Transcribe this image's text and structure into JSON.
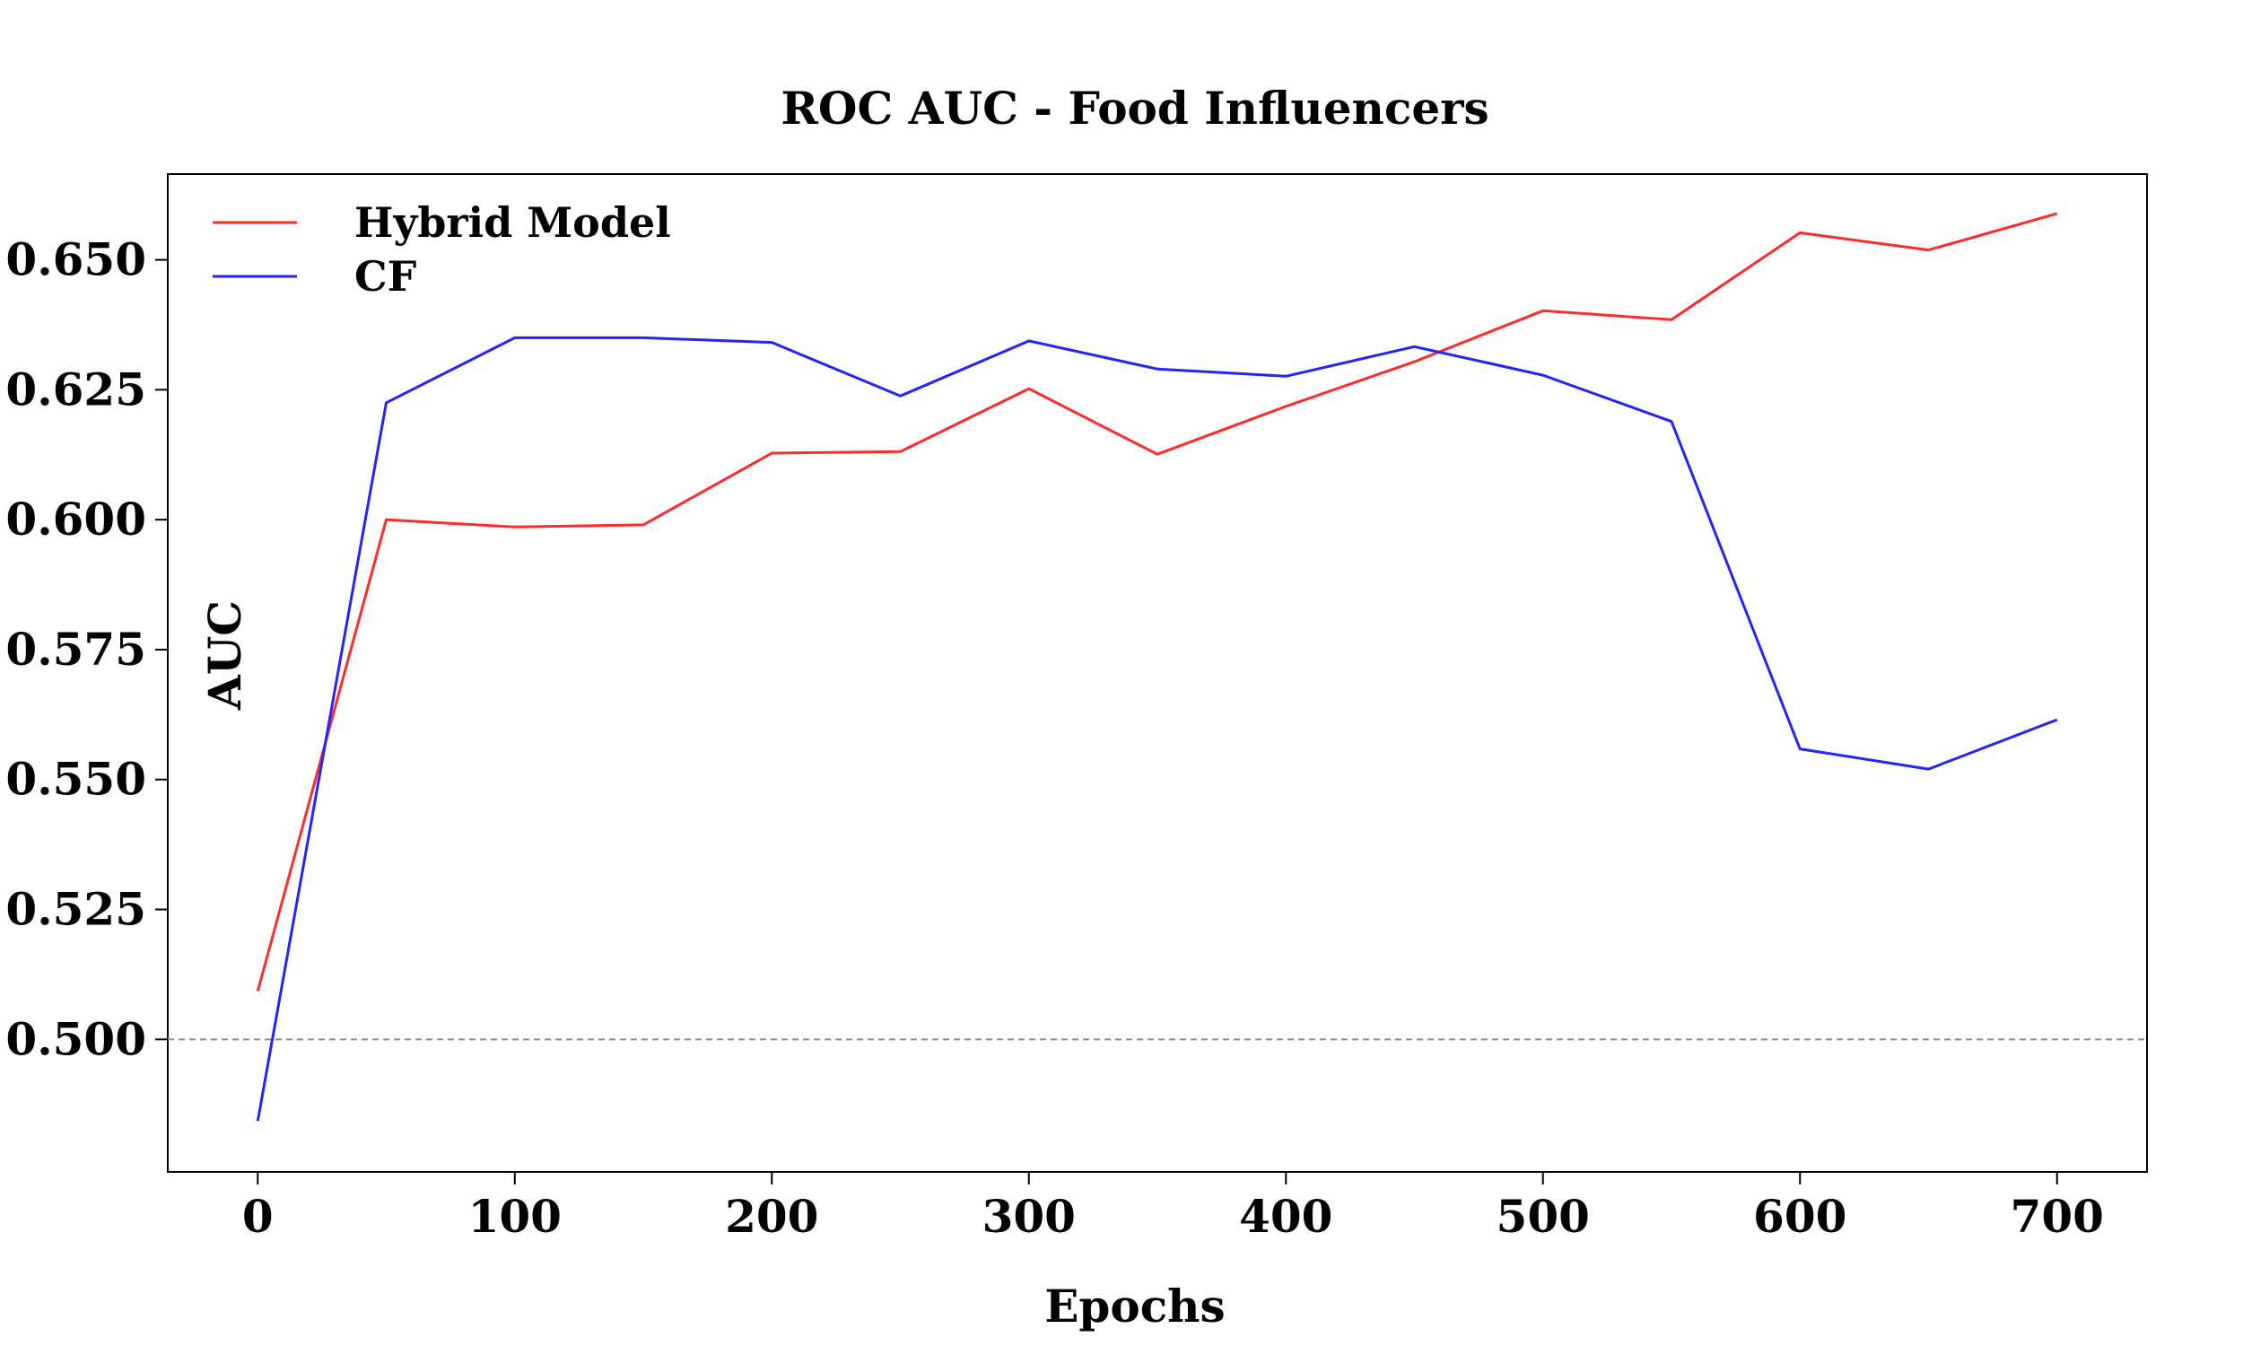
{
  "chart_data": {
    "type": "line",
    "title": "ROC AUC - Food Influencers",
    "xlabel": "Epochs",
    "ylabel": "AUC",
    "xlim": [
      -35,
      735
    ],
    "ylim": [
      0.4745,
      0.6665
    ],
    "xticks": [
      0,
      100,
      200,
      300,
      400,
      500,
      600,
      700
    ],
    "xtick_labels": [
      "0",
      "100",
      "200",
      "300",
      "400",
      "500",
      "600",
      "700"
    ],
    "yticks": [
      0.5,
      0.525,
      0.55,
      0.575,
      0.6,
      0.625,
      0.65
    ],
    "ytick_labels": [
      "0.500",
      "0.525",
      "0.550",
      "0.575",
      "0.600",
      "0.625",
      "0.650"
    ],
    "x": [
      0,
      50,
      100,
      150,
      200,
      250,
      300,
      350,
      400,
      450,
      500,
      550,
      600,
      650,
      700
    ],
    "series": [
      {
        "name": "Hybrid Model",
        "color": "#ff2a2a",
        "values": [
          0.5093,
          0.6,
          0.5986,
          0.599,
          0.6128,
          0.6131,
          0.6252,
          0.6126,
          0.6218,
          0.6304,
          0.6402,
          0.6385,
          0.6552,
          0.6519,
          0.6589
        ]
      },
      {
        "name": "CF",
        "color": "#2323ff",
        "values": [
          0.4843,
          0.6225,
          0.635,
          0.635,
          0.6341,
          0.6238,
          0.6344,
          0.629,
          0.6276,
          0.6333,
          0.6278,
          0.6189,
          0.5559,
          0.552,
          0.5615
        ]
      }
    ],
    "reference_line": {
      "y": 0.5,
      "style": "dashed",
      "color": "#8c8c8c"
    },
    "legend": {
      "position": "top-left",
      "frame": false
    },
    "grid": false
  }
}
